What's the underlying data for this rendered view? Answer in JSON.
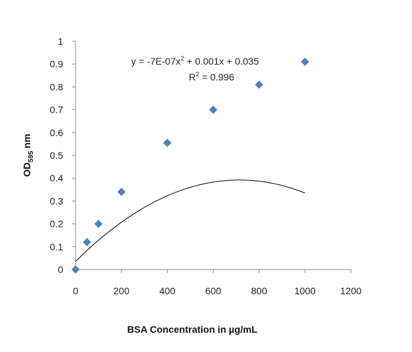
{
  "chart_data": {
    "type": "scatter",
    "title": "",
    "xlabel": "BSA Concentration in µg/mL",
    "ylabel_main": "OD",
    "ylabel_sub": "595",
    "ylabel_unit": " nm",
    "xlim": [
      0,
      1200
    ],
    "ylim": [
      0,
      1
    ],
    "x_ticks": [
      0,
      200,
      400,
      600,
      800,
      1000,
      1200
    ],
    "y_ticks": [
      0,
      0.1,
      0.2,
      0.3,
      0.4,
      0.5,
      0.6,
      0.7,
      0.8,
      0.9,
      1
    ],
    "x_tick_labels": [
      "0",
      "200",
      "400",
      "600",
      "800",
      "1000",
      "1200"
    ],
    "y_tick_labels": [
      "0",
      "0.1",
      "0.2",
      "0.3",
      "0.4",
      "0.5",
      "0.6",
      "0.7",
      "0.8",
      "0.9",
      "1"
    ],
    "grid": false,
    "legend": "none",
    "marker": "diamond",
    "marker_color": "#4f81bd",
    "trendline_color": "#000000",
    "points": [
      {
        "x": 0,
        "y": 0
      },
      {
        "x": 50,
        "y": 0.12
      },
      {
        "x": 100,
        "y": 0.2
      },
      {
        "x": 200,
        "y": 0.34
      },
      {
        "x": 400,
        "y": 0.555
      },
      {
        "x": 600,
        "y": 0.7
      },
      {
        "x": 800,
        "y": 0.81
      },
      {
        "x": 1000,
        "y": 0.91
      }
    ],
    "trendline": {
      "type": "polynomial",
      "coefficients": {
        "a": -7e-07,
        "b": 0.001,
        "c": 0.035
      },
      "x_range": [
        0,
        1000
      ],
      "equation_prefix": "y = -7E-07x",
      "equation_exp": "2",
      "equation_suffix": " + 0.001x + 0.035",
      "r2_prefix": "R",
      "r2_exp": "2",
      "r2_suffix": " = 0.996"
    }
  }
}
